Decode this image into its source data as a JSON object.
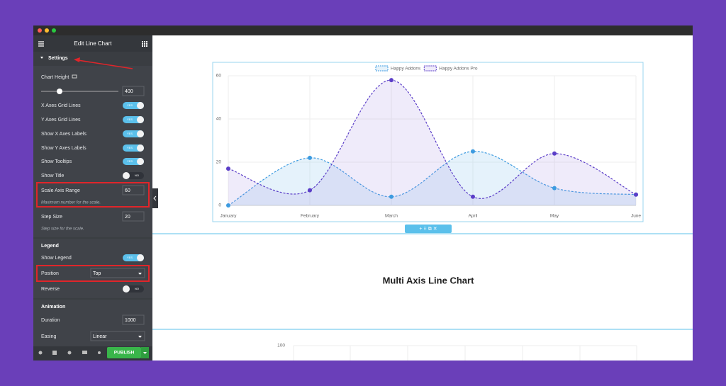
{
  "panel": {
    "title": "Edit Line Chart",
    "section": "Settings",
    "items": [
      {
        "label": "Chart Height",
        "input": 400
      },
      {
        "label": "X Axes Grid Lines",
        "toggle": "YES"
      },
      {
        "label": "Y Axes Grid Lines",
        "toggle": "YES"
      },
      {
        "label": "Show X Axes Labels",
        "toggle": "YES"
      },
      {
        "label": "Show Y Axes Labels",
        "toggle": "YES"
      },
      {
        "label": "Show Tooltips",
        "toggle": "YES"
      },
      {
        "label": "Show Title",
        "toggle": "NO"
      },
      {
        "label": "Scale Axis Range",
        "input": 60,
        "note": "Maximum number for the scale."
      },
      {
        "label": "Step Size",
        "input": 20,
        "note": "Step size for the scale."
      },
      {
        "heading": "Legend"
      },
      {
        "label": "Show Legend",
        "toggle": "YES"
      },
      {
        "label": "Position",
        "select": "Top"
      },
      {
        "label": "Reverse",
        "toggle": "NO"
      },
      {
        "heading": "Animation"
      },
      {
        "label": "Duration",
        "input": 1000
      },
      {
        "label": "Easing",
        "select": "Linear"
      }
    ],
    "publish": "PUBLISH"
  },
  "preview": {
    "chart": {
      "type": "line",
      "categories": [
        "January",
        "February",
        "March",
        "April",
        "May",
        "June"
      ],
      "series": [
        {
          "name": "Happy Addons",
          "color": "#3d9be0",
          "fill": "rgba(150,205,240,0.25)",
          "values": [
            0,
            22,
            4,
            25,
            8,
            5
          ]
        },
        {
          "name": "Happy Addons Pro",
          "color": "#5b3ec8",
          "fill": "rgba(150,120,220,0.15)",
          "values": [
            17,
            7,
            58,
            4,
            24,
            5
          ]
        }
      ],
      "ylim": [
        0,
        60
      ],
      "yticks": [
        0,
        20,
        40,
        60
      ],
      "grid": true,
      "legend": "top"
    },
    "section_title": "Multi Axis Line Chart",
    "next_chart": {
      "yticks": [
        100
      ]
    }
  }
}
